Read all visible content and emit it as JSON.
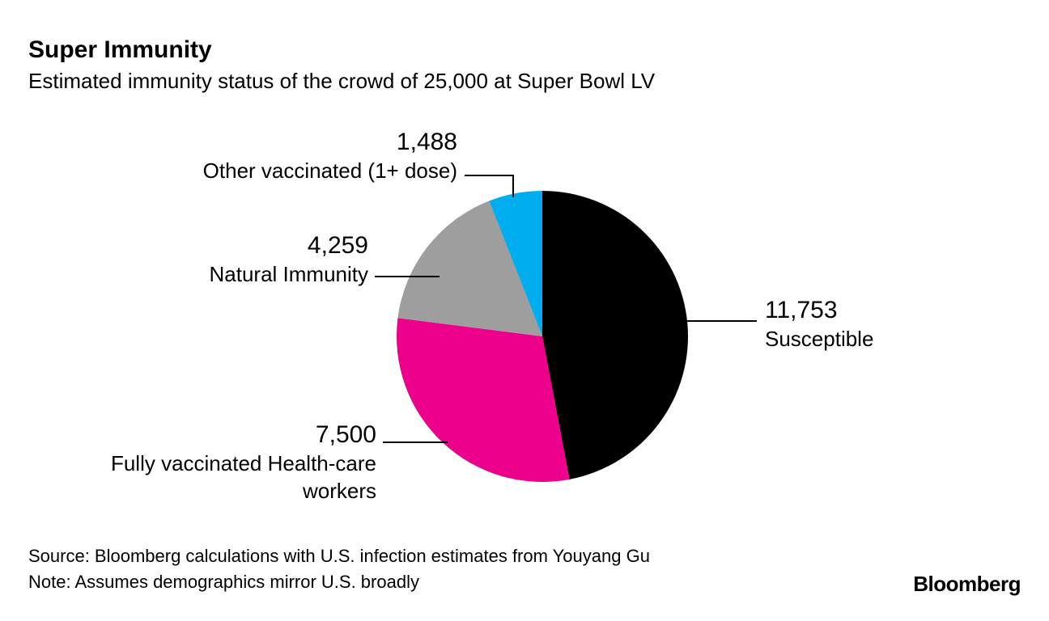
{
  "header": {
    "title": "Super Immunity",
    "subtitle": "Estimated immunity status of the crowd of 25,000 at Super Bowl LV"
  },
  "chart": {
    "type": "pie",
    "total": 25000,
    "background_color": "#ffffff",
    "leader_color": "#000000",
    "slices": [
      {
        "label": "Susceptible",
        "value": 11753,
        "value_display": "11,753",
        "color": "#000000"
      },
      {
        "label": "Fully vaccinated Health-care workers",
        "value": 7500,
        "value_display": "7,500",
        "color": "#ec008c"
      },
      {
        "label": "Natural Immunity",
        "value": 4259,
        "value_display": "4,259",
        "color": "#9e9e9e"
      },
      {
        "label": "Other vaccinated (1+ dose)",
        "value": 1488,
        "value_display": "1,488",
        "color": "#00aeef"
      }
    ],
    "radius": 180,
    "start_angle_deg": -90,
    "title_fontsize": 30,
    "label_fontsize": 26,
    "value_fontsize": 30
  },
  "footer": {
    "source": "Source: Bloomberg calculations with U.S. infection estimates from Youyang Gu",
    "note": "Note: Assumes demographics mirror U.S. broadly"
  },
  "brand": "Bloomberg"
}
